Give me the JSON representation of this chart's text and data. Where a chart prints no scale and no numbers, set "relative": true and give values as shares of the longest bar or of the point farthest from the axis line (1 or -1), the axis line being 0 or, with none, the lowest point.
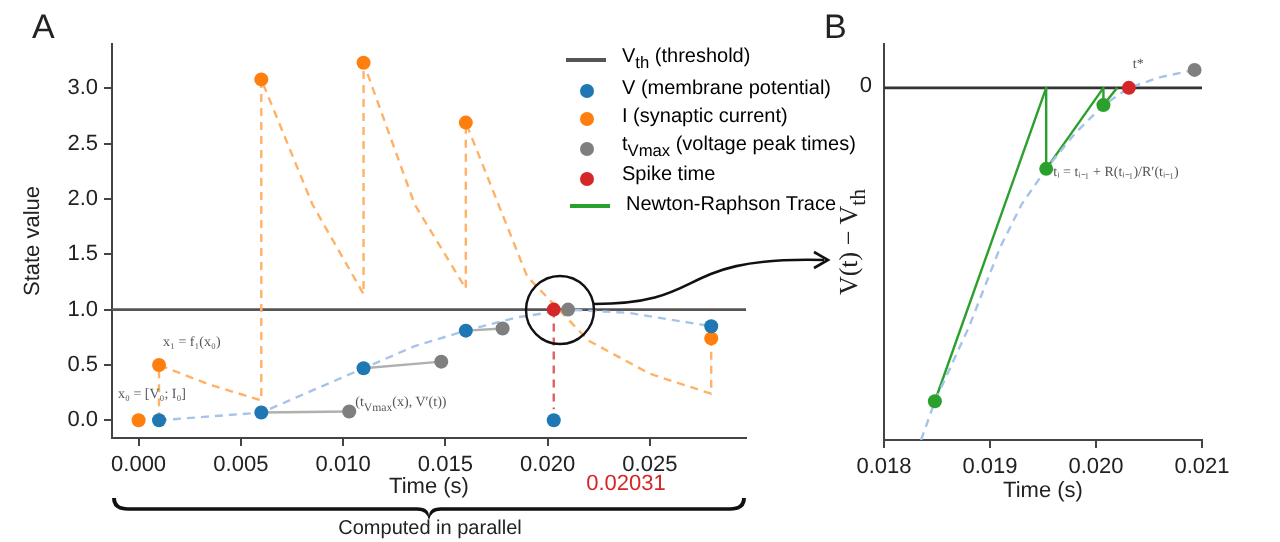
{
  "chart_data": [
    {
      "type": "scatter",
      "title": "A",
      "xlabel": "Time (s)",
      "ylabel": "State value",
      "xlim": [
        -0.0013,
        0.0297
      ],
      "ylim": [
        -0.16,
        3.4
      ],
      "xticks": [
        {
          "value": 0,
          "label": "0.000"
        },
        {
          "value": 0.005,
          "label": "0.005"
        },
        {
          "value": 0.01,
          "label": "0.010"
        },
        {
          "value": 0.015,
          "label": "0.015"
        },
        {
          "value": 0.02,
          "label": "0.020"
        },
        {
          "value": 0.025,
          "label": "0.025"
        }
      ],
      "yticks": [
        {
          "value": 0,
          "label": "0.0"
        },
        {
          "value": 0.5,
          "label": "0.5"
        },
        {
          "value": 1,
          "label": "1.0"
        },
        {
          "value": 1.5,
          "label": "1.5"
        },
        {
          "value": 2,
          "label": "2.0"
        },
        {
          "value": 2.5,
          "label": "2.5"
        },
        {
          "value": 3,
          "label": "3.0"
        }
      ],
      "grid": false,
      "legend": "top right",
      "marker": "circle",
      "ref_lines": [
        {
          "axis": "y",
          "value": 1,
          "label": "V$_{th}$ (threshold)",
          "color": "#555555"
        }
      ],
      "series": [
        {
          "type": "line",
          "color": "#ffb266",
          "line_style": "dashed",
          "marker": "none",
          "x": [
            0.001,
            0.001,
            0.0035,
            0.006,
            0.006,
            0.0085,
            0.011,
            0.011,
            0.0135,
            0.016,
            0.016,
            0.019,
            0.022,
            0.025,
            0.028,
            0.028
          ],
          "values": [
            0,
            0.5,
            0.32,
            0.18,
            3.08,
            1.95,
            1.14,
            3.23,
            1.95,
            1.19,
            2.69,
            1.3,
            0.72,
            0.42,
            0.24,
            0.74
          ]
        },
        {
          "type": "line",
          "color": "#a6c4ea",
          "line_style": "dashed",
          "marker": "none",
          "x": [
            0.001,
            0.006,
            0.0085,
            0.011,
            0.0135,
            0.016,
            0.0185,
            0.021,
            0.024,
            0.028
          ],
          "values": [
            0,
            0.07,
            0.27,
            0.47,
            0.67,
            0.81,
            0.93,
            1.0,
            0.97,
            0.85
          ]
        },
        {
          "type": "line",
          "color": "#b0b0b0",
          "line_style": "solid",
          "marker": "none",
          "x": [
            0.006,
            0.0103
          ],
          "values": [
            0.07,
            0.08
          ]
        },
        {
          "type": "line",
          "color": "#b0b0b0",
          "line_style": "solid",
          "marker": "none",
          "x": [
            0.011,
            0.0148
          ],
          "values": [
            0.47,
            0.53
          ]
        },
        {
          "type": "line",
          "color": "#b0b0b0",
          "line_style": "solid",
          "marker": "none",
          "x": [
            0.016,
            0.0178
          ],
          "values": [
            0.81,
            0.83
          ]
        },
        {
          "type": "line",
          "color": "#e06060",
          "line_style": "dashed",
          "marker": "none",
          "x": [
            0.0203,
            0.0203
          ],
          "values": [
            1.0,
            0.1
          ]
        },
        {
          "name": "V (membrane potential)",
          "color": "#1f77b4",
          "x": [
            0.001,
            0.006,
            0.011,
            0.016,
            0.0203,
            0.028
          ],
          "values": [
            0,
            0.07,
            0.47,
            0.81,
            0,
            0.85
          ]
        },
        {
          "name": "I (synaptic current)",
          "color": "#ff7f0e",
          "x": [
            0,
            0.001,
            0.006,
            0.011,
            0.016,
            0.028
          ],
          "values": [
            0,
            0.5,
            3.08,
            3.23,
            2.69,
            0.74
          ]
        },
        {
          "name": "t$_{Vmax}$ (voltage peak times)",
          "color": "#7f7f7f",
          "x": [
            0.0103,
            0.0148,
            0.0178,
            0.021
          ],
          "values": [
            0.08,
            0.53,
            0.83,
            1.0
          ]
        },
        {
          "name": "Spike time",
          "color": "#d62728",
          "x": [
            0.0203
          ],
          "values": [
            1.0
          ]
        }
      ],
      "annotations": [
        "0.02031",
        {
          "text": "x₁ = f₁(x₀)",
          "x": 0.001,
          "y": 0.62
        },
        "x₀ = [V₀; I₀]",
        {
          "text": "(t$_{Vmax}$(x), V′(t))",
          "x": 0.0104,
          "y": 0.08
        },
        "Computed in parallel"
      ]
    },
    {
      "type": "line",
      "title": "B",
      "xlabel": "Time (s)",
      "ylabel": "V(t) − V$_{th}$",
      "relative": true,
      "xlim": [
        0.018,
        0.021
      ],
      "xticks": [
        {
          "value": 0.018,
          "label": "0.018"
        },
        {
          "value": 0.019,
          "label": "0.019"
        },
        {
          "value": 0.02,
          "label": "0.020"
        },
        {
          "value": 0.021,
          "label": "0.021"
        }
      ],
      "grid": false,
      "legend": "left",
      "marker": "none",
      "ref_lines": [
        {
          "axis": "y",
          "value": 0,
          "label": "0",
          "color": "#333333"
        }
      ],
      "series": [
        {
          "color": "#a6c4ea",
          "line_style": "dashed",
          "x": [
            0.01835,
            0.01848,
            0.0188,
            0.0191,
            0.0193,
            0.01953,
            0.0198,
            0.02007,
            0.02031,
            0.0206,
            0.02093
          ],
          "values": [
            -1,
            -0.89,
            -0.68,
            -0.45,
            -0.33,
            -0.23,
            -0.13,
            -0.049,
            0,
            0.03,
            0.051
          ]
        },
        {
          "name": "Newton-Raphson Trace",
          "color": "#2ca02c",
          "line_style": "solid",
          "x": [
            0.01848,
            0.01953,
            0.01953,
            0.02007,
            0.02007,
            0.0202
          ],
          "values": [
            -0.89,
            0,
            -0.23,
            0,
            -0.049,
            0
          ]
        },
        {
          "type": "scatter",
          "marker": "circle",
          "color": "#2ca02c",
          "x": [
            0.01848,
            0.01953,
            0.02007
          ],
          "values": [
            -0.89,
            -0.23,
            -0.049
          ]
        },
        {
          "type": "scatter",
          "marker": "circle",
          "color": "#d62728",
          "x": [
            0.02031
          ],
          "values": [
            0
          ]
        },
        {
          "type": "scatter",
          "marker": "circle",
          "color": "#7f7f7f",
          "x": [
            0.02093
          ],
          "values": [
            0.051
          ]
        }
      ],
      "annotations": [
        {
          "text": "t*",
          "x": 0.02031,
          "y": 0.04
        },
        {
          "text": "tᵢ = tᵢ₋₁ + R(tᵢ₋₁)/R′(tᵢ₋₁)",
          "x": 0.01956,
          "y": -0.26
        }
      ]
    }
  ]
}
